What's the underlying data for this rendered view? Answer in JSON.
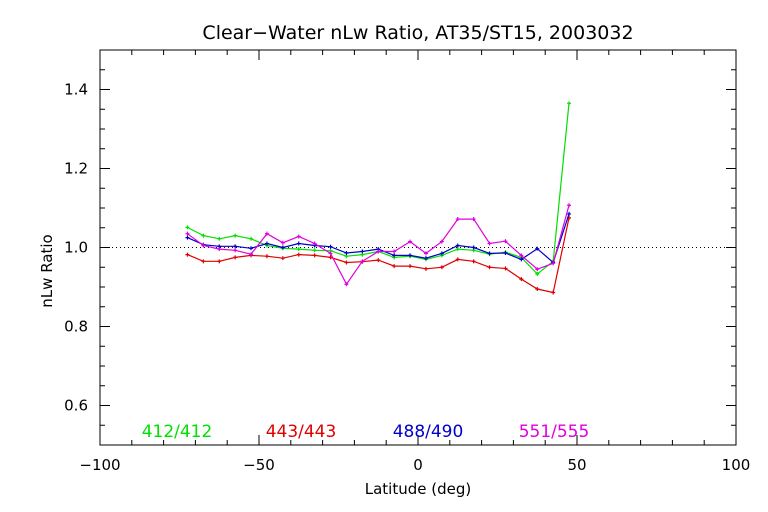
{
  "chart_data": {
    "type": "line",
    "title": "Clear−Water nLw Ratio, AT35/ST15, 2003032",
    "xlabel": "Latitude (deg)",
    "ylabel": "nLw Ratio",
    "xlim": [
      -100,
      100
    ],
    "ylim": [
      0.5,
      1.5
    ],
    "xticks": [
      -100,
      -50,
      0,
      50,
      100
    ],
    "xtick_labels": [
      "−100",
      "−50",
      "0",
      "50",
      "100"
    ],
    "yticks": [
      0.6,
      0.8,
      1.0,
      1.2,
      1.4
    ],
    "ytick_labels": [
      "0.6",
      "0.8",
      "1.0",
      "1.2",
      "1.4"
    ],
    "reference_line": 1.0,
    "grid": false,
    "legend": "bottom-inside",
    "x": [
      -72.5,
      -67.5,
      -62.5,
      -57.5,
      -52.5,
      -47.5,
      -42.5,
      -37.5,
      -32.5,
      -27.5,
      -22.5,
      -17.5,
      -12.5,
      -7.5,
      -2.5,
      2.5,
      7.5,
      12.5,
      17.5,
      22.5,
      27.5,
      32.5,
      37.5,
      42.5,
      47.5
    ],
    "series": [
      {
        "name": "412/412",
        "color": "#00e000",
        "values": [
          1.051,
          1.03,
          1.022,
          1.03,
          1.022,
          1.005,
          0.998,
          0.996,
          0.993,
          0.992,
          0.978,
          0.982,
          0.99,
          0.975,
          0.978,
          0.97,
          0.98,
          0.996,
          0.993,
          0.983,
          0.988,
          0.975,
          0.933,
          0.965,
          1.365
        ]
      },
      {
        "name": "443/443",
        "color": "#e00000",
        "values": [
          0.982,
          0.965,
          0.965,
          0.975,
          0.98,
          0.978,
          0.973,
          0.982,
          0.98,
          0.975,
          0.962,
          0.964,
          0.968,
          0.953,
          0.953,
          0.946,
          0.95,
          0.97,
          0.965,
          0.95,
          0.947,
          0.92,
          0.895,
          0.886,
          1.075
        ]
      },
      {
        "name": "488/490",
        "color": "#0000c8",
        "values": [
          1.025,
          1.007,
          1.003,
          1.003,
          0.998,
          1.01,
          1.0,
          1.01,
          1.005,
          1.002,
          0.986,
          0.99,
          0.996,
          0.98,
          0.98,
          0.973,
          0.985,
          1.005,
          1.0,
          0.985,
          0.986,
          0.97,
          0.997,
          0.962,
          1.085
        ]
      },
      {
        "name": "551/555",
        "color": "#e000e0",
        "values": [
          1.035,
          1.005,
          0.996,
          0.993,
          0.983,
          1.035,
          1.012,
          1.028,
          1.01,
          0.985,
          0.907,
          0.965,
          0.99,
          0.99,
          1.015,
          0.985,
          1.015,
          1.072,
          1.072,
          1.01,
          1.016,
          0.98,
          0.945,
          0.96,
          1.107
        ]
      }
    ]
  },
  "colors": {
    "axis": "#000000",
    "background": "#ffffff"
  }
}
